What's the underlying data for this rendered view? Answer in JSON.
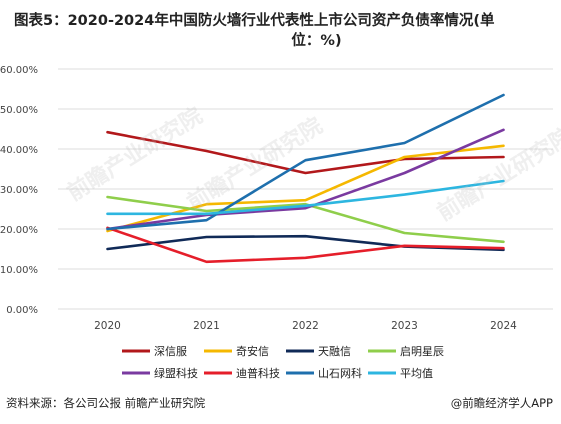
{
  "title_line1": "图表5：2020-2024年中国防火墙行业代表性上市公司资产负债率情况(单",
  "title_line2": "位：%)",
  "source": "资料来源：各公司公报 前瞻产业研究院",
  "credit": "@前瞻经济学人APP",
  "watermark": "前瞻产业研究院",
  "chart_data": {
    "type": "line",
    "title": "",
    "xlabel": "",
    "ylabel": "",
    "x": [
      "2020",
      "2021",
      "2022",
      "2023",
      "2024"
    ],
    "ylim": [
      0,
      60
    ],
    "yticks": [
      0,
      10,
      20,
      30,
      40,
      50,
      60
    ],
    "ytick_labels": [
      "0.00%",
      "10.00%",
      "20.00%",
      "30.00%",
      "40.00%",
      "50.00%",
      "60.00%"
    ],
    "grid": "horizontal",
    "legend_position": "bottom",
    "series": [
      {
        "name": "深信服",
        "color": "#b2181b",
        "values": [
          44.2,
          39.5,
          34.0,
          37.5,
          38.0
        ]
      },
      {
        "name": "奇安信",
        "color": "#f5b800",
        "values": [
          19.5,
          26.2,
          27.2,
          38.0,
          40.8
        ]
      },
      {
        "name": "天融信",
        "color": "#102a57",
        "values": [
          15.0,
          18.0,
          18.2,
          15.6,
          14.8
        ]
      },
      {
        "name": "启明星辰",
        "color": "#8fce4b",
        "values": [
          28.0,
          24.5,
          26.2,
          19.0,
          16.8
        ]
      },
      {
        "name": "绿盟科技",
        "color": "#7a3aa0",
        "values": [
          20.0,
          23.5,
          25.2,
          34.0,
          44.8
        ]
      },
      {
        "name": "迪普科技",
        "color": "#e51e2a",
        "values": [
          20.3,
          11.8,
          12.8,
          15.8,
          15.2
        ]
      },
      {
        "name": "山石网科",
        "color": "#1e6fad",
        "values": [
          20.0,
          22.2,
          37.2,
          41.5,
          53.5
        ]
      },
      {
        "name": "平均值",
        "color": "#2db6e0",
        "values": [
          23.8,
          23.8,
          25.8,
          28.6,
          32.0
        ]
      }
    ]
  }
}
